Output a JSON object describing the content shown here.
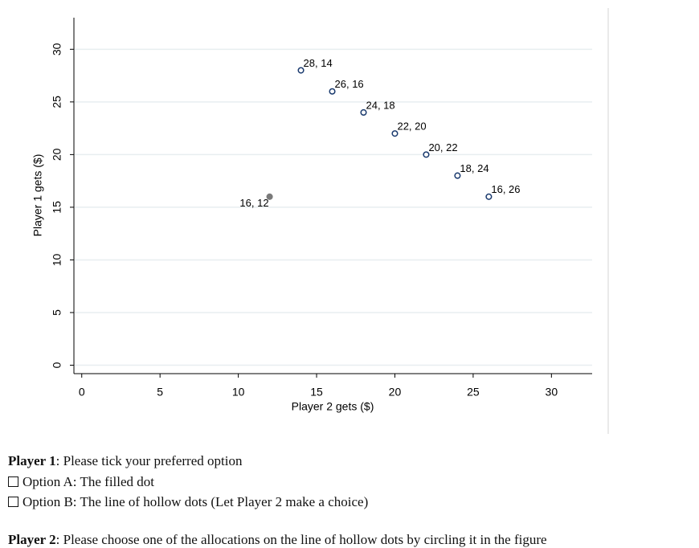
{
  "chart_data": {
    "type": "scatter",
    "xlabel": "Player 2 gets ($)",
    "ylabel": "Player 1 gets ($)",
    "xlim": [
      -0.5,
      32.6
    ],
    "ylim": [
      -0.8,
      33
    ],
    "xticks": [
      0,
      5,
      10,
      15,
      20,
      25,
      30
    ],
    "yticks": [
      0,
      5,
      10,
      15,
      20,
      25,
      30
    ],
    "grid": true,
    "series": [
      {
        "color": "#7a7a7a",
        "marker": "filled",
        "x": [
          12
        ],
        "values": [
          16
        ],
        "value_labels": [
          "16, 12"
        ],
        "label_side": "left"
      },
      {
        "color": "#1a3a6e",
        "marker": "hollow",
        "x": [
          14,
          16,
          18,
          20,
          22,
          24,
          26
        ],
        "values": [
          28,
          26,
          24,
          22,
          20,
          18,
          16
        ],
        "value_labels": [
          "28, 14",
          "26, 16",
          "24, 18",
          "22, 20",
          "20, 22",
          "18, 24",
          "16, 26"
        ],
        "label_side": "right"
      }
    ]
  },
  "text": {
    "player1_label": "Player 1",
    "player1_prompt": ": Please tick your preferred option",
    "option_a": "Option A: The filled dot",
    "option_b": "Option B: The line of hollow dots (Let Player 2 make a choice)",
    "player2_label": "Player 2",
    "player2_prompt": ": Please choose one of the allocations on the line of hollow dots by circling it in the figure"
  }
}
